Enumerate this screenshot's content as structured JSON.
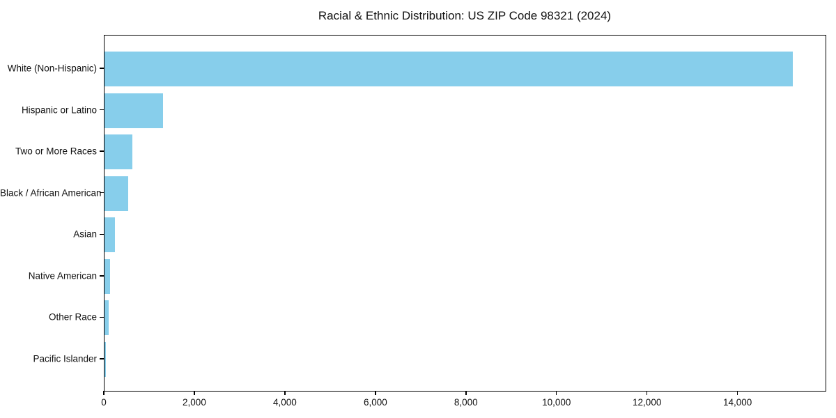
{
  "chart_data": {
    "type": "bar",
    "orientation": "horizontal",
    "title": "Racial & Ethnic Distribution: US ZIP Code 98321 (2024)",
    "categories": [
      "White (Non-Hispanic)",
      "Hispanic or Latino",
      "Two or More Races",
      "Black / African American",
      "Asian",
      "Native American",
      "Other Race",
      "Pacific Islander"
    ],
    "values": [
      15200,
      1290,
      610,
      530,
      230,
      120,
      100,
      30
    ],
    "xlabel": "",
    "ylabel": "",
    "xlim": [
      0,
      15960
    ],
    "xticks": [
      0,
      2000,
      4000,
      6000,
      8000,
      10000,
      12000,
      14000
    ],
    "xtick_labels": [
      "0",
      "2,000",
      "4,000",
      "6,000",
      "8,000",
      "10,000",
      "12,000",
      "14,000"
    ],
    "bar_color": "#87CEEB",
    "spine_color": "#000000",
    "text_color": "#111111",
    "background_color": "#ffffff",
    "grid": false,
    "legend": null
  }
}
